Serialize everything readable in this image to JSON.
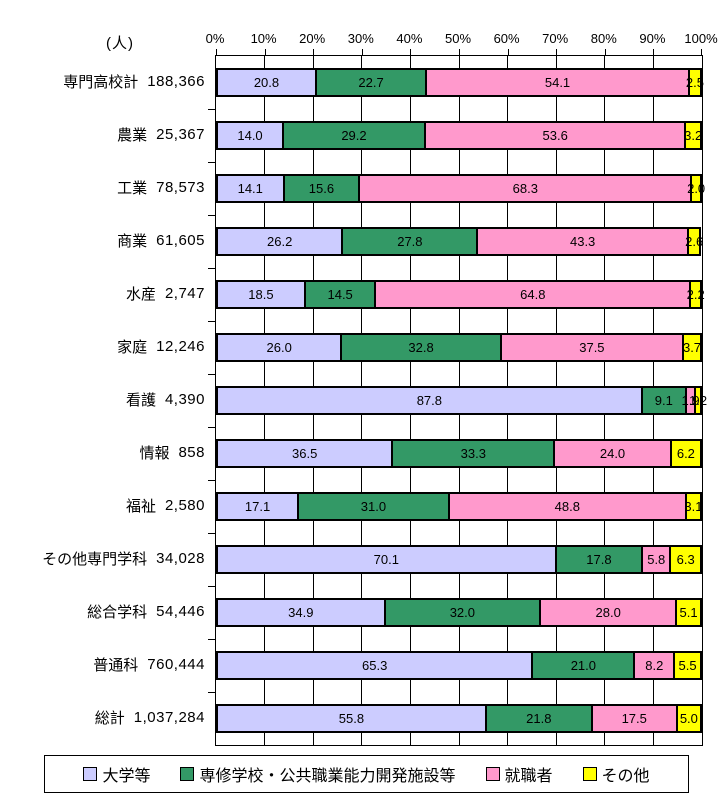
{
  "chart_data": {
    "type": "bar",
    "stacked": true,
    "orientation": "horizontal",
    "unit_label": "(人)",
    "title": "",
    "xlabel": "",
    "ylabel": "",
    "xlim": [
      0,
      100
    ],
    "grid": true,
    "legend_position": "bottom",
    "value_labels_shown": true,
    "axis_ticks": [
      "0%",
      "10%",
      "20%",
      "30%",
      "40%",
      "50%",
      "60%",
      "70%",
      "80%",
      "90%",
      "100%"
    ],
    "categories": [
      {
        "label": "専門高校計",
        "count": "188,366"
      },
      {
        "label": "農業",
        "count": "25,367"
      },
      {
        "label": "工業",
        "count": "78,573"
      },
      {
        "label": "商業",
        "count": "61,605"
      },
      {
        "label": "水産",
        "count": "2,747"
      },
      {
        "label": "家庭",
        "count": "12,246"
      },
      {
        "label": "看護",
        "count": "4,390"
      },
      {
        "label": "情報",
        "count": "858"
      },
      {
        "label": "福祉",
        "count": "2,580"
      },
      {
        "label": "その他専門学科",
        "count": "34,028"
      },
      {
        "label": "総合学科",
        "count": "54,446"
      },
      {
        "label": "普通科",
        "count": "760,444"
      },
      {
        "label": "総計",
        "count": "1,037,284"
      }
    ],
    "series": [
      {
        "name": "大学等",
        "color": "#CCCCFF",
        "values": [
          20.8,
          14.0,
          14.1,
          26.2,
          18.5,
          26.0,
          87.8,
          36.5,
          17.1,
          70.1,
          34.9,
          65.3,
          55.8
        ]
      },
      {
        "name": "専修学校・公共職業能力開発施設等",
        "color": "#339966",
        "values": [
          22.7,
          29.2,
          15.6,
          27.8,
          14.5,
          32.8,
          9.1,
          33.3,
          31.0,
          17.8,
          32.0,
          21.0,
          21.8
        ]
      },
      {
        "name": "就職者",
        "color": "#FF99CC",
        "values": [
          54.1,
          53.6,
          68.3,
          43.3,
          64.8,
          37.5,
          1.9,
          24.0,
          48.8,
          5.8,
          28.0,
          8.2,
          17.5
        ]
      },
      {
        "name": "その他",
        "color": "#FFFF00",
        "values": [
          2.5,
          3.2,
          2.0,
          2.6,
          2.2,
          3.7,
          1.2,
          6.2,
          3.1,
          6.3,
          5.1,
          5.5,
          5.0
        ]
      }
    ]
  }
}
